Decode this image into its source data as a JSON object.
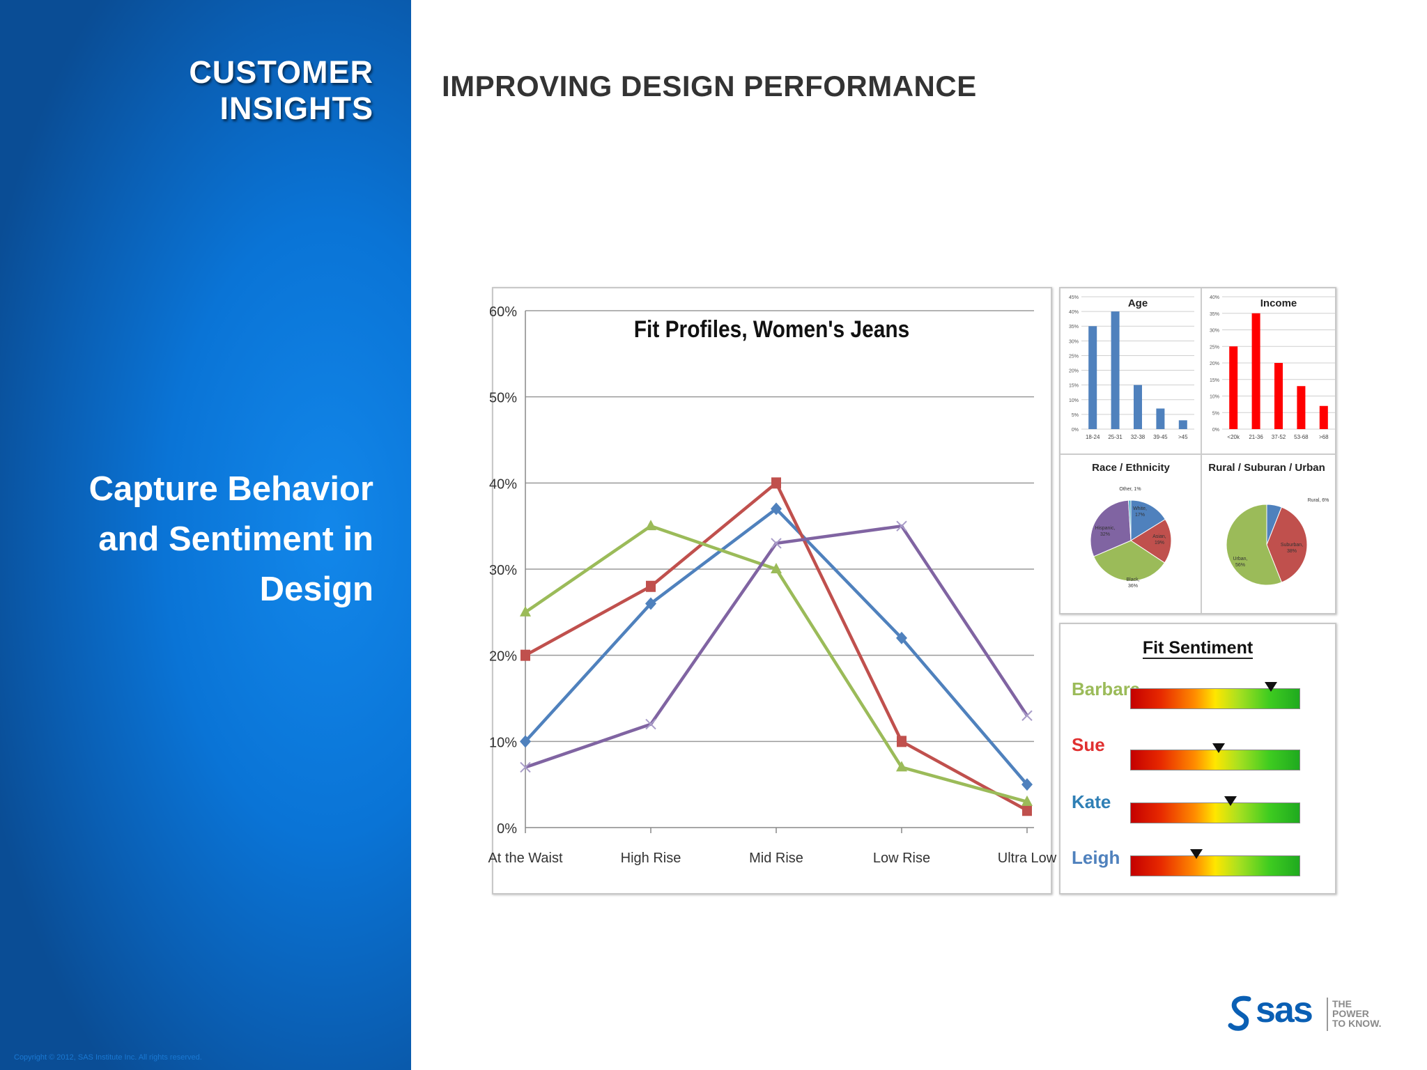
{
  "sidebar": {
    "brand_line1": "CUSTOMER",
    "brand_line2": "INSIGHTS",
    "tagline_line1": "Capture Behavior",
    "tagline_line2": "and Sentiment in",
    "tagline_line3": "Design",
    "copyright": "Copyright © 2012, SAS Institute Inc. All rights reserved."
  },
  "page_title": "IMPROVING DESIGN PERFORMANCE",
  "logo": {
    "text": "sas",
    "slogan_line1": "THE",
    "slogan_line2": "POWER",
    "slogan_line3": "TO KNOW."
  },
  "chart_data": [
    {
      "type": "line",
      "title": "Fit Profiles, Women's Jeans",
      "categories": [
        "At the Waist",
        "High Rise",
        "Mid Rise",
        "Low Rise",
        "Ultra Low"
      ],
      "ylim": [
        0,
        60
      ],
      "yticks": [
        "0%",
        "10%",
        "20%",
        "30%",
        "40%",
        "50%",
        "60%"
      ],
      "grid": true,
      "series": [
        {
          "color": "#4f81bd",
          "marker": "diamond",
          "values": [
            10,
            26,
            37,
            22,
            5
          ]
        },
        {
          "color": "#c0504d",
          "marker": "square",
          "values": [
            20,
            28,
            40,
            10,
            2
          ]
        },
        {
          "color": "#9bbb59",
          "marker": "triangle",
          "values": [
            25,
            35,
            30,
            7,
            3
          ]
        },
        {
          "color": "#8064a2",
          "marker": "x",
          "values": [
            7,
            12,
            33,
            35,
            13
          ]
        }
      ]
    },
    {
      "type": "bar",
      "title": "Age",
      "color": "#4f81bd",
      "categories": [
        "18-24",
        "25-31",
        "32-38",
        "39-45",
        ">45"
      ],
      "values": [
        35,
        40,
        15,
        7,
        3
      ],
      "ylim": [
        0,
        45
      ],
      "yticks": [
        "0%",
        "5%",
        "10%",
        "15%",
        "20%",
        "25%",
        "30%",
        "35%",
        "40%",
        "45%"
      ]
    },
    {
      "type": "bar",
      "title": "Income",
      "color": "#ff0000",
      "categories": [
        "<20k",
        "21-36",
        "37-52",
        "53-68",
        ">68"
      ],
      "values": [
        25,
        35,
        20,
        13,
        7
      ],
      "ylim": [
        0,
        40
      ],
      "yticks": [
        "0%",
        "5%",
        "10%",
        "15%",
        "20%",
        "25%",
        "30%",
        "35%",
        "40%"
      ]
    },
    {
      "type": "pie",
      "title": "Race / Ethnicity",
      "slices": [
        {
          "label": "White,",
          "value_label": "17%",
          "value": 17,
          "color": "#4f81bd"
        },
        {
          "label": "Asian,",
          "value_label": "19%",
          "value": 19,
          "color": "#c0504d"
        },
        {
          "label": "Black,",
          "value_label": "36%",
          "value": 36,
          "color": "#9bbb59"
        },
        {
          "label": "Hispanic,",
          "value_label": "32%",
          "value": 32,
          "color": "#8064a2"
        },
        {
          "label": "Other, 1%",
          "value_label": "",
          "value": 1,
          "color": "#4bacc6"
        }
      ]
    },
    {
      "type": "pie",
      "title": "Rural / Suburan / Urban",
      "slices": [
        {
          "label": "Rural, 6%",
          "value_label": "",
          "value": 6,
          "color": "#4f81bd"
        },
        {
          "label": "Suburban,",
          "value_label": "38%",
          "value": 38,
          "color": "#c0504d"
        },
        {
          "label": "Urban,",
          "value_label": "56%",
          "value": 56,
          "color": "#9bbb59"
        }
      ]
    }
  ],
  "sentiment": {
    "title": "Fit Sentiment",
    "rows": [
      {
        "name": "Barbara",
        "color": "#9bbb59",
        "position": 0.83
      },
      {
        "name": "Sue",
        "color": "#e03030",
        "position": 0.52
      },
      {
        "name": "Kate",
        "color": "#2f7fb5",
        "position": 0.59
      },
      {
        "name": "Leigh",
        "color": "#4f81bd",
        "position": 0.39
      }
    ]
  }
}
